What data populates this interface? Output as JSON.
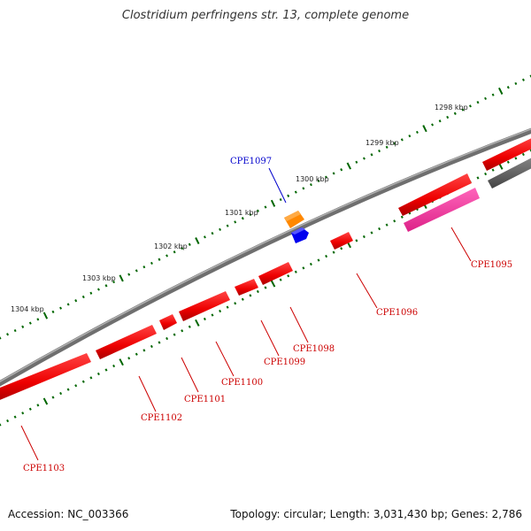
{
  "title": "Clostridium perfringens str. 13, complete genome",
  "footer": {
    "accession": "Accession: NC_003366",
    "info": "Topology: circular; Length: 3,031,430 bp; Genes: 2,786"
  },
  "colors": {
    "backbone": "#7f7f7f",
    "gene_red": "#ff0000",
    "gene_pink": "#ff3399",
    "gene_gray": "#555555",
    "gene_orange": "#ff8800",
    "gene_blue": "#0000ee",
    "tick_green": "#006600",
    "label_red": "#cc0000",
    "label_blue": "#0000cc"
  },
  "kbp_labels": [
    "1298 kbp",
    "1299 kbp",
    "1300 kbp",
    "1301 kbp",
    "1302 kbp",
    "1303 kbp",
    "1304 kbp"
  ],
  "gene_labels": [
    "CPE1095",
    "CPE1096",
    "CPE1097",
    "CPE1098",
    "CPE1099",
    "CPE1100",
    "CPE1101",
    "CPE1102",
    "CPE1103"
  ]
}
